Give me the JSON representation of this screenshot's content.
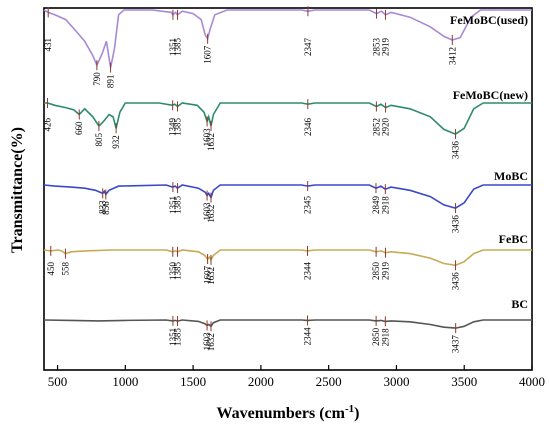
{
  "chart_data": {
    "type": "line",
    "xlabel": "Wavenumbers (cm",
    "xlabel_sup": "-1",
    "xlabel_end": ")",
    "ylabel": "Transmittance(%)",
    "xlim": [
      400,
      4000
    ],
    "xticks": [
      500,
      1000,
      1500,
      2000,
      2500,
      3000,
      3500,
      4000
    ],
    "grid": false,
    "series": [
      {
        "name": "FeMoBC(used)",
        "color": "#a78ad6",
        "points": [
          [
            400,
            66
          ],
          [
            431,
            64
          ],
          [
            480,
            62
          ],
          [
            560,
            58
          ],
          [
            640,
            48
          ],
          [
            700,
            40
          ],
          [
            760,
            28
          ],
          [
            790,
            20
          ],
          [
            830,
            30
          ],
          [
            860,
            40
          ],
          [
            891,
            18
          ],
          [
            920,
            34
          ],
          [
            950,
            62
          ],
          [
            990,
            66
          ],
          [
            1200,
            66
          ],
          [
            1340,
            64
          ],
          [
            1351,
            62
          ],
          [
            1370,
            64
          ],
          [
            1385,
            62
          ],
          [
            1420,
            65
          ],
          [
            1500,
            63
          ],
          [
            1560,
            58
          ],
          [
            1590,
            45
          ],
          [
            1607,
            42
          ],
          [
            1625,
            50
          ],
          [
            1660,
            62
          ],
          [
            1750,
            66
          ],
          [
            2300,
            66
          ],
          [
            2347,
            65
          ],
          [
            2400,
            66
          ],
          [
            2800,
            66
          ],
          [
            2853,
            63
          ],
          [
            2890,
            65
          ],
          [
            2919,
            62
          ],
          [
            2960,
            64
          ],
          [
            3100,
            60
          ],
          [
            3250,
            52
          ],
          [
            3350,
            44
          ],
          [
            3412,
            41
          ],
          [
            3470,
            43
          ],
          [
            3550,
            60
          ],
          [
            3620,
            66
          ],
          [
            4000,
            66
          ]
        ],
        "peaks": [
          431,
          790,
          891,
          1351,
          1385,
          1607,
          2347,
          2853,
          2919,
          3412
        ]
      },
      {
        "name": "FeMoBC(new)",
        "color": "#2e8b6b",
        "points": [
          [
            400,
            50
          ],
          [
            426,
            50
          ],
          [
            480,
            48
          ],
          [
            560,
            46
          ],
          [
            620,
            44
          ],
          [
            660,
            40
          ],
          [
            700,
            45
          ],
          [
            760,
            38
          ],
          [
            805,
            30
          ],
          [
            840,
            34
          ],
          [
            880,
            40
          ],
          [
            910,
            38
          ],
          [
            932,
            28
          ],
          [
            960,
            42
          ],
          [
            1000,
            50
          ],
          [
            1250,
            50
          ],
          [
            1349,
            48
          ],
          [
            1365,
            49
          ],
          [
            1385,
            47
          ],
          [
            1420,
            50
          ],
          [
            1530,
            48
          ],
          [
            1580,
            42
          ],
          [
            1603,
            34
          ],
          [
            1615,
            38
          ],
          [
            1632,
            30
          ],
          [
            1650,
            40
          ],
          [
            1700,
            50
          ],
          [
            2300,
            50
          ],
          [
            2346,
            49
          ],
          [
            2400,
            50
          ],
          [
            2800,
            50
          ],
          [
            2852,
            47
          ],
          [
            2885,
            49
          ],
          [
            2920,
            46
          ],
          [
            2960,
            48
          ],
          [
            3100,
            45
          ],
          [
            3250,
            38
          ],
          [
            3350,
            27
          ],
          [
            3436,
            23
          ],
          [
            3500,
            28
          ],
          [
            3570,
            45
          ],
          [
            3640,
            50
          ],
          [
            4000,
            50
          ]
        ],
        "peaks": [
          426,
          660,
          805,
          932,
          1349,
          1385,
          1603,
          1632,
          2346,
          2852,
          2920,
          3436
        ]
      },
      {
        "name": "MoBC",
        "color": "#3a48c8",
        "points": [
          [
            400,
            37
          ],
          [
            480,
            36
          ],
          [
            600,
            35
          ],
          [
            700,
            34
          ],
          [
            780,
            32
          ],
          [
            833,
            29
          ],
          [
            845,
            31
          ],
          [
            856,
            28
          ],
          [
            880,
            32
          ],
          [
            950,
            36
          ],
          [
            1300,
            37
          ],
          [
            1351,
            35
          ],
          [
            1368,
            36
          ],
          [
            1385,
            34
          ],
          [
            1420,
            37
          ],
          [
            1540,
            34
          ],
          [
            1590,
            30
          ],
          [
            1603,
            27
          ],
          [
            1615,
            29
          ],
          [
            1632,
            25
          ],
          [
            1650,
            32
          ],
          [
            1700,
            37
          ],
          [
            2300,
            37
          ],
          [
            2345,
            36
          ],
          [
            2400,
            37
          ],
          [
            2800,
            37
          ],
          [
            2849,
            34
          ],
          [
            2885,
            36
          ],
          [
            2918,
            33
          ],
          [
            2960,
            35
          ],
          [
            3100,
            32
          ],
          [
            3250,
            26
          ],
          [
            3350,
            18
          ],
          [
            3436,
            15
          ],
          [
            3500,
            20
          ],
          [
            3570,
            33
          ],
          [
            3640,
            37
          ],
          [
            4000,
            37
          ]
        ],
        "peaks": [
          833,
          856,
          1351,
          1385,
          1603,
          1632,
          2345,
          2849,
          2918,
          3436
        ]
      },
      {
        "name": "FeBC",
        "color": "#c8aa55",
        "points": [
          [
            400,
            19
          ],
          [
            450,
            18
          ],
          [
            500,
            19
          ],
          [
            530,
            18
          ],
          [
            558,
            15
          ],
          [
            600,
            17
          ],
          [
            700,
            18
          ],
          [
            900,
            19
          ],
          [
            1300,
            19
          ],
          [
            1350,
            17
          ],
          [
            1368,
            18
          ],
          [
            1385,
            17
          ],
          [
            1420,
            19
          ],
          [
            1540,
            17
          ],
          [
            1585,
            13
          ],
          [
            1607,
            9
          ],
          [
            1620,
            11
          ],
          [
            1632,
            8
          ],
          [
            1650,
            13
          ],
          [
            1700,
            19
          ],
          [
            2300,
            19
          ],
          [
            2344,
            18
          ],
          [
            2400,
            19
          ],
          [
            2800,
            19
          ],
          [
            2850,
            17
          ],
          [
            2885,
            18
          ],
          [
            2919,
            16
          ],
          [
            2960,
            17
          ],
          [
            3100,
            15
          ],
          [
            3250,
            10
          ],
          [
            3350,
            4
          ],
          [
            3436,
            2
          ],
          [
            3500,
            6
          ],
          [
            3570,
            15
          ],
          [
            3640,
            19
          ],
          [
            4000,
            19
          ]
        ],
        "peaks": [
          450,
          558,
          1350,
          1385,
          1607,
          1632,
          2344,
          2850,
          2919,
          3436
        ]
      },
      {
        "name": "BC",
        "color": "#555555",
        "points": [
          [
            400,
            2
          ],
          [
            600,
            1.5
          ],
          [
            800,
            1
          ],
          [
            1000,
            1.5
          ],
          [
            1300,
            2
          ],
          [
            1351,
            1
          ],
          [
            1368,
            1.5
          ],
          [
            1385,
            0.8
          ],
          [
            1420,
            2
          ],
          [
            1540,
            0.5
          ],
          [
            1585,
            -2
          ],
          [
            1603,
            -4
          ],
          [
            1615,
            -3
          ],
          [
            1632,
            -5
          ],
          [
            1650,
            -1
          ],
          [
            1700,
            2
          ],
          [
            2300,
            2
          ],
          [
            2344,
            1.5
          ],
          [
            2400,
            2
          ],
          [
            2800,
            2
          ],
          [
            2850,
            1
          ],
          [
            2885,
            1.5
          ],
          [
            2918,
            0.5
          ],
          [
            2960,
            1
          ],
          [
            3100,
            0
          ],
          [
            3250,
            -3
          ],
          [
            3350,
            -6
          ],
          [
            3437,
            -7
          ],
          [
            3500,
            -5
          ],
          [
            3570,
            0
          ],
          [
            3640,
            2
          ],
          [
            4000,
            2
          ]
        ],
        "peaks": [
          1351,
          1385,
          1603,
          1632,
          2344,
          2850,
          2918,
          3437
        ]
      }
    ]
  }
}
